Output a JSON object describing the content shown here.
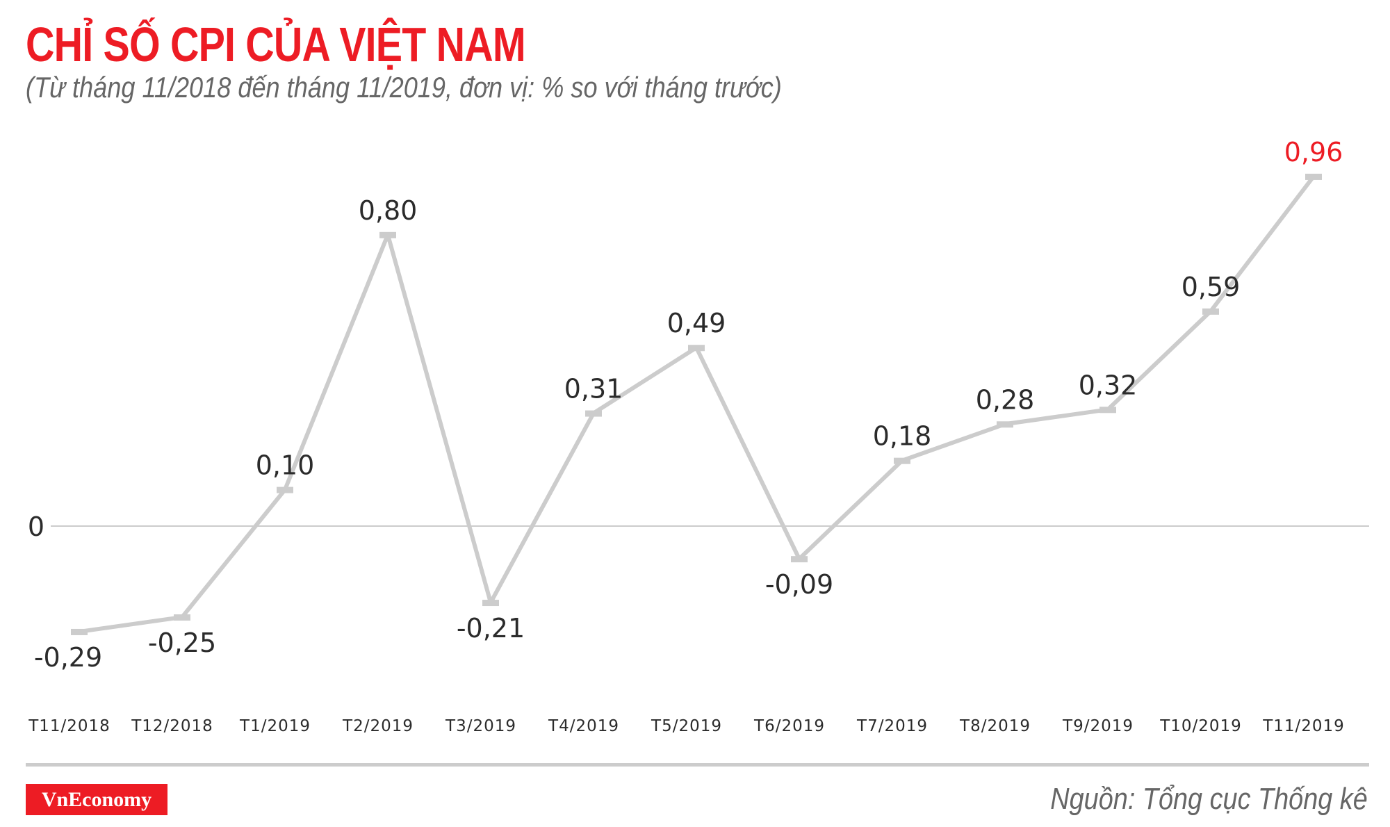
{
  "header": {
    "title": "CHỈ SỐ CPI CỦA VIỆT NAM",
    "subtitle": "(Từ tháng 11/2018 đến tháng 11/2019, đơn vị: % so với tháng trước)"
  },
  "footer": {
    "logo": "VnEconomy",
    "source": "Nguồn: Tổng cục Thống kê"
  },
  "colors": {
    "title": "#ED1C24",
    "highlight_label": "#ED1C24",
    "line": "#CCCCCC",
    "label": "#2B2B2B",
    "subtitle": "#666666",
    "logo_bg": "#ED1C24"
  },
  "axis": {
    "zero_label": "0"
  },
  "chart_data": {
    "type": "line",
    "title": "CHỈ SỐ CPI CỦA VIỆT NAM",
    "subtitle": "(Từ tháng 11/2018 đến tháng 11/2019, đơn vị: % so với tháng trước)",
    "xlabel": "",
    "ylabel": "% so với tháng trước",
    "categories": [
      "T11/2018",
      "T12/2018",
      "T1/2019",
      "T2/2019",
      "T3/2019",
      "T4/2019",
      "T5/2019",
      "T6/2019",
      "T7/2019",
      "T8/2019",
      "T9/2019",
      "T10/2019",
      "T11/2019"
    ],
    "series": [
      {
        "name": "CPI",
        "values": [
          -0.29,
          -0.25,
          0.1,
          0.8,
          -0.21,
          0.31,
          0.49,
          -0.09,
          0.18,
          0.28,
          0.32,
          0.59,
          0.96
        ],
        "labels": [
          "-0,29",
          "-0,25",
          "0,10",
          "0,80",
          "-0,21",
          "0,31",
          "0,49",
          "-0,09",
          "0,18",
          "0,28",
          "0,32",
          "0,59",
          "0,96"
        ]
      }
    ],
    "highlight_index": 12,
    "ylim": [
      -0.35,
      1.0
    ],
    "y_ticks": [
      "0"
    ],
    "grid": false,
    "reference_line": 0,
    "legend": "none",
    "source": "Nguồn: Tổng cục Thống kê"
  }
}
